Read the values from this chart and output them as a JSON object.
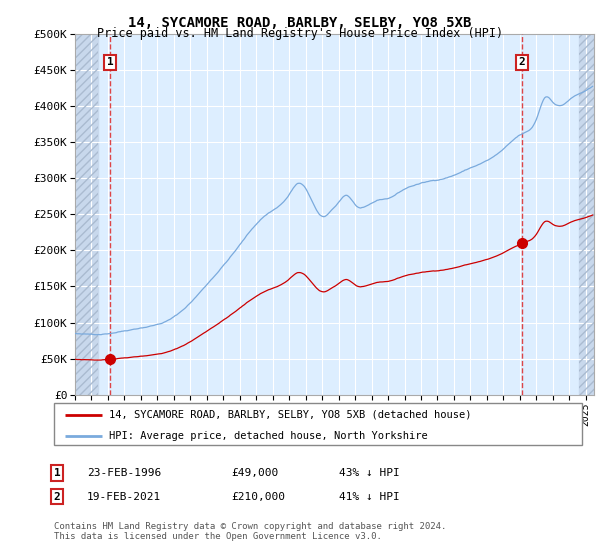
{
  "title": "14, SYCAMORE ROAD, BARLBY, SELBY, YO8 5XB",
  "subtitle": "Price paid vs. HM Land Registry's House Price Index (HPI)",
  "ylabel_ticks": [
    "£0",
    "£50K",
    "£100K",
    "£150K",
    "£200K",
    "£250K",
    "£300K",
    "£350K",
    "£400K",
    "£450K",
    "£500K"
  ],
  "ylim": [
    0,
    500000
  ],
  "xlim_start": 1994.0,
  "xlim_end": 2025.5,
  "sale1_year": 1996.13,
  "sale1_price": 49000,
  "sale2_year": 2021.12,
  "sale2_price": 210000,
  "marker_color": "#cc0000",
  "hpi_line_color": "#7aaadd",
  "price_line_color": "#cc0000",
  "bg_plot_color": "#ddeeff",
  "bg_hatch_color": "#ccddf0",
  "grid_color": "#ffffff",
  "vline_color": "#dd3333",
  "legend_label1": "14, SYCAMORE ROAD, BARLBY, SELBY, YO8 5XB (detached house)",
  "legend_label2": "HPI: Average price, detached house, North Yorkshire",
  "table_row1": [
    "1",
    "23-FEB-1996",
    "£49,000",
    "43% ↓ HPI"
  ],
  "table_row2": [
    "2",
    "19-FEB-2021",
    "£210,000",
    "41% ↓ HPI"
  ],
  "footnote": "Contains HM Land Registry data © Crown copyright and database right 2024.\nThis data is licensed under the Open Government Licence v3.0.",
  "font_family": "monospace"
}
